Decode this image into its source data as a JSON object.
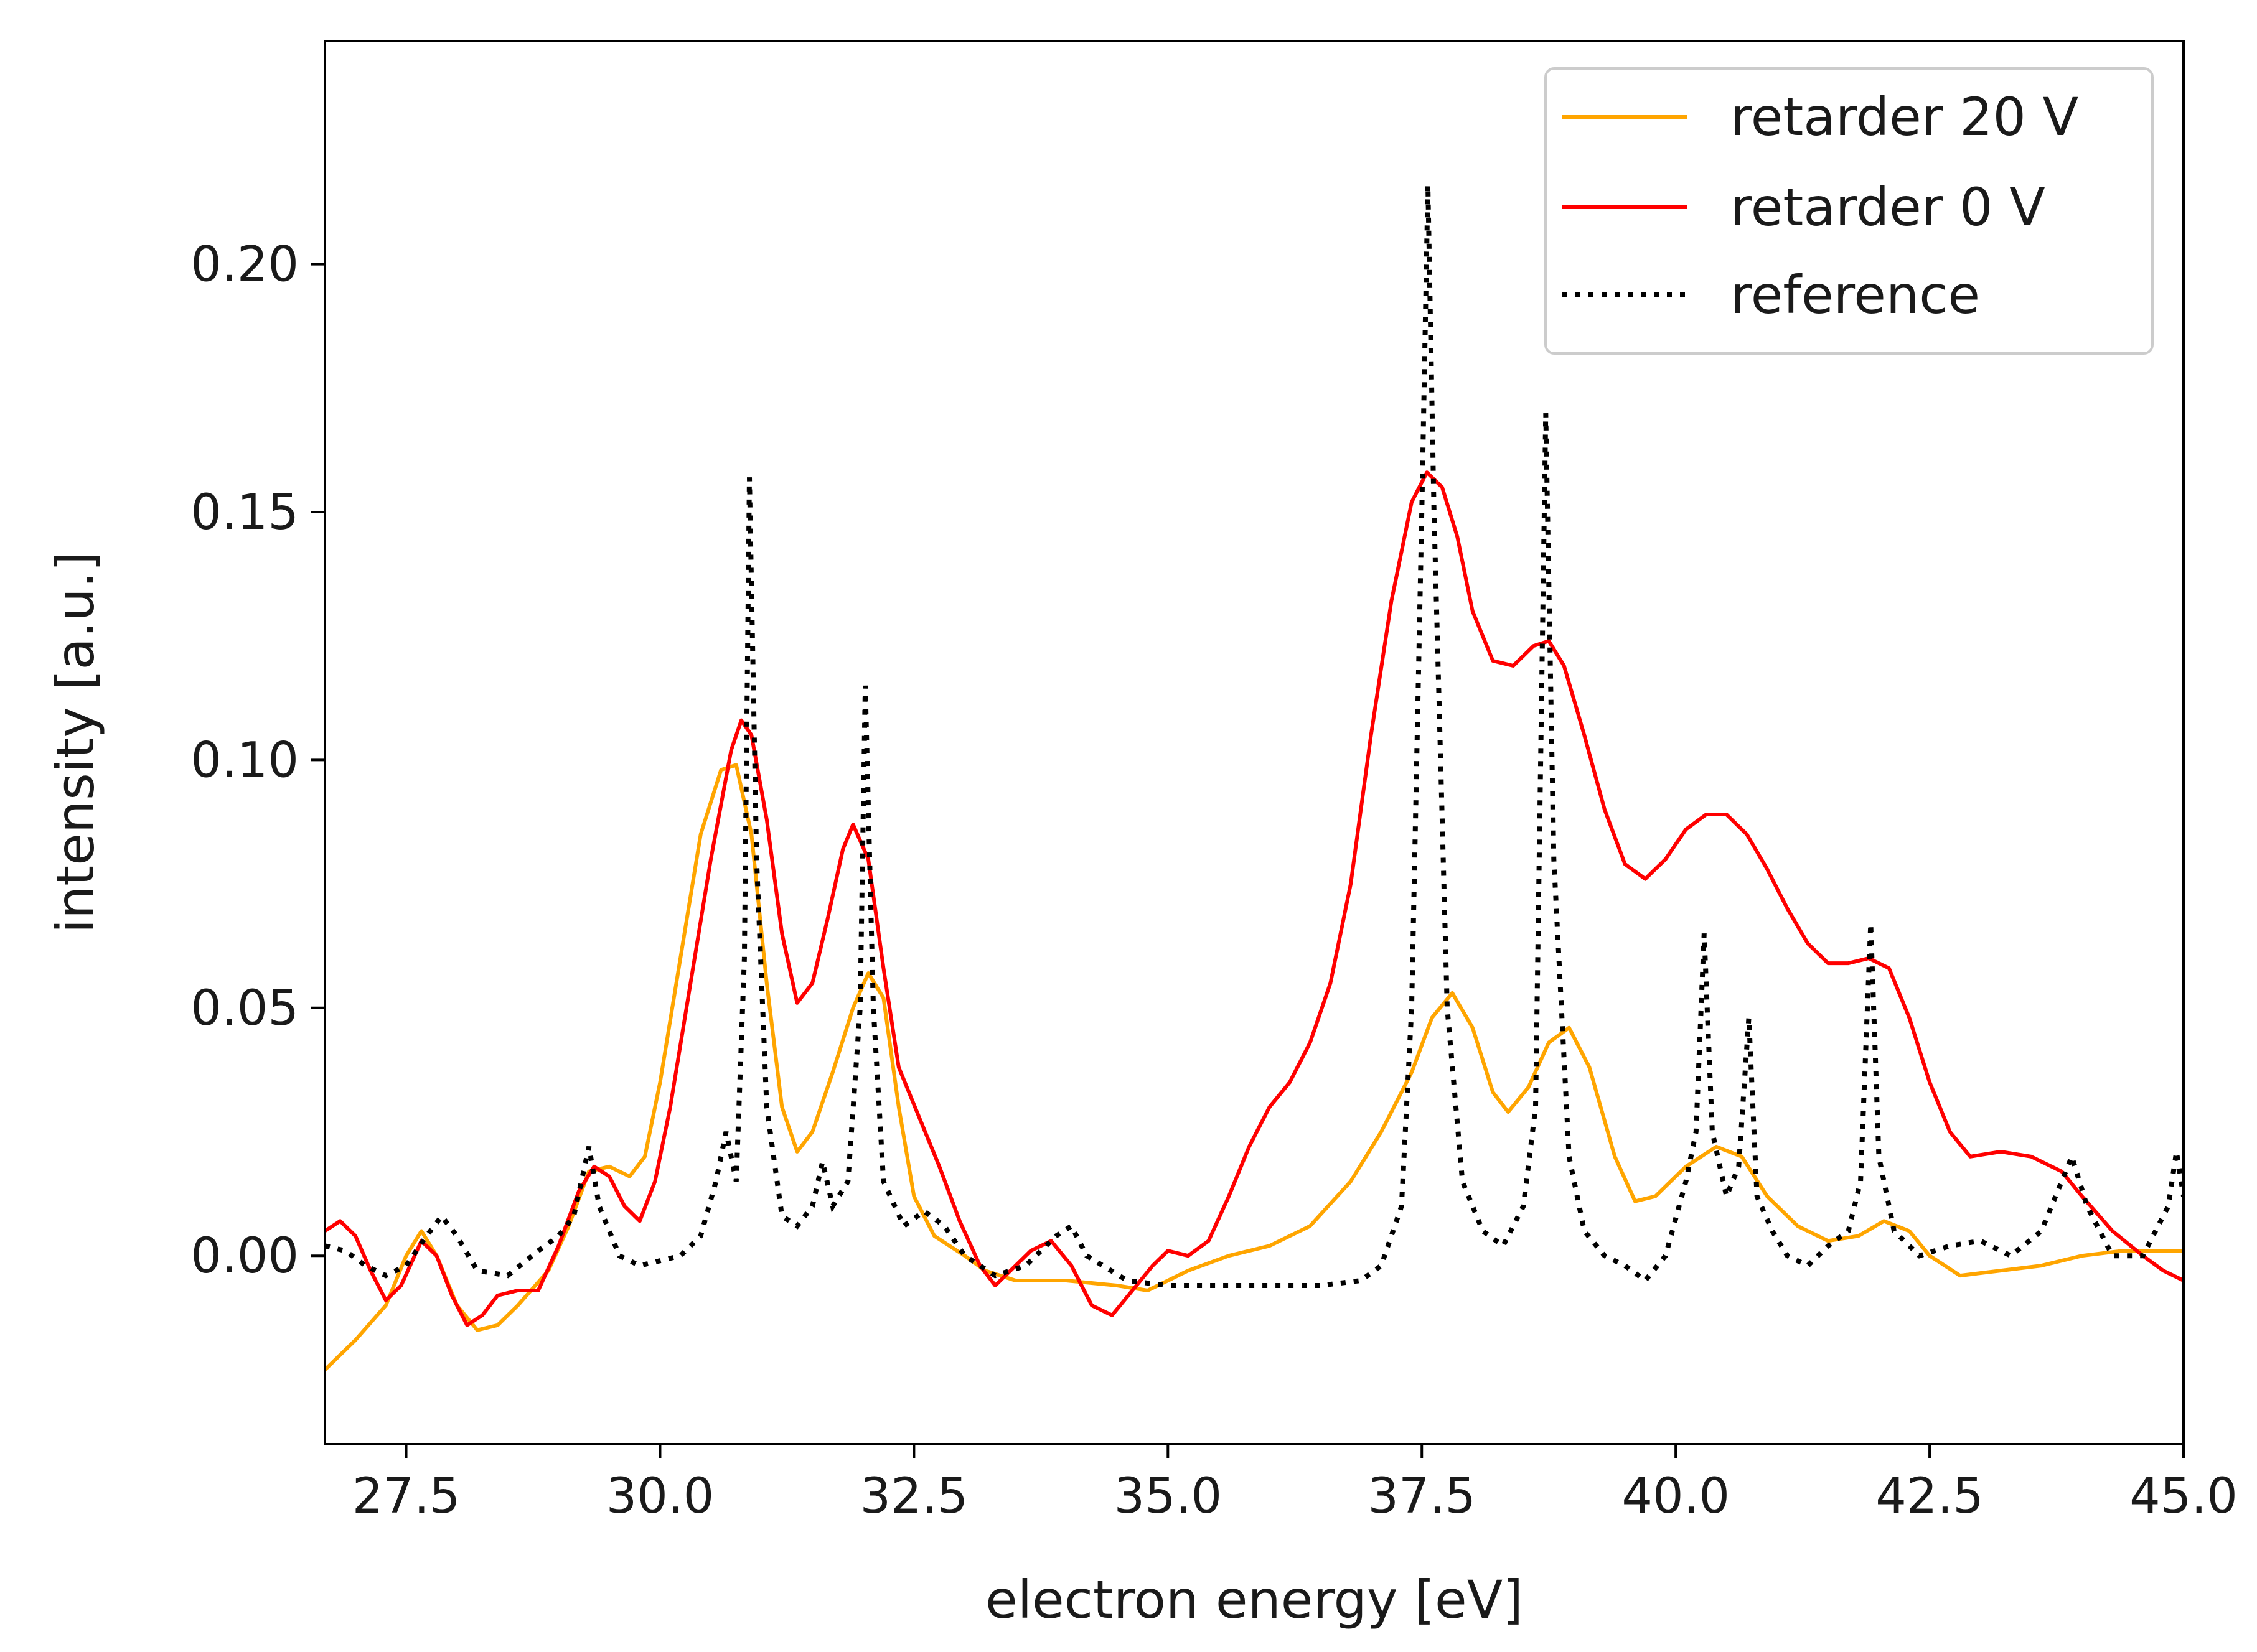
{
  "chart_data": {
    "type": "line",
    "title": "",
    "xlabel": "electron energy [eV]",
    "ylabel": "intensity [a.u.]",
    "xlim": [
      26.7,
      45.0
    ],
    "ylim": [
      -0.038,
      0.245
    ],
    "xticks": [
      27.5,
      30.0,
      32.5,
      35.0,
      37.5,
      40.0,
      42.5,
      45.0
    ],
    "xtick_labels": [
      "27.5",
      "30.0",
      "32.5",
      "35.0",
      "37.5",
      "40.0",
      "42.5",
      "45.0"
    ],
    "yticks": [
      0.0,
      0.05,
      0.1,
      0.15,
      0.2
    ],
    "ytick_labels": [
      "0.00",
      "0.05",
      "0.10",
      "0.15",
      "0.20"
    ],
    "grid": false,
    "legend_position": "top-right",
    "series": [
      {
        "name": "retarder 20 V",
        "color": "#ffa500",
        "style": "solid",
        "points": [
          [
            26.7,
            -0.023
          ],
          [
            27.0,
            -0.017
          ],
          [
            27.3,
            -0.01
          ],
          [
            27.5,
            0.0
          ],
          [
            27.65,
            0.005
          ],
          [
            27.8,
            0.0
          ],
          [
            28.0,
            -0.01
          ],
          [
            28.2,
            -0.015
          ],
          [
            28.4,
            -0.014
          ],
          [
            28.6,
            -0.01
          ],
          [
            28.9,
            -0.003
          ],
          [
            29.1,
            0.006
          ],
          [
            29.3,
            0.017
          ],
          [
            29.5,
            0.018
          ],
          [
            29.7,
            0.016
          ],
          [
            29.85,
            0.02
          ],
          [
            30.0,
            0.035
          ],
          [
            30.2,
            0.06
          ],
          [
            30.4,
            0.085
          ],
          [
            30.6,
            0.098
          ],
          [
            30.75,
            0.099
          ],
          [
            30.9,
            0.085
          ],
          [
            31.05,
            0.055
          ],
          [
            31.2,
            0.03
          ],
          [
            31.35,
            0.021
          ],
          [
            31.5,
            0.025
          ],
          [
            31.7,
            0.037
          ],
          [
            31.9,
            0.05
          ],
          [
            32.05,
            0.057
          ],
          [
            32.2,
            0.052
          ],
          [
            32.35,
            0.03
          ],
          [
            32.5,
            0.012
          ],
          [
            32.7,
            0.004
          ],
          [
            33.0,
            0.0
          ],
          [
            33.2,
            -0.003
          ],
          [
            33.5,
            -0.005
          ],
          [
            34.0,
            -0.005
          ],
          [
            34.5,
            -0.006
          ],
          [
            34.8,
            -0.007
          ],
          [
            35.2,
            -0.003
          ],
          [
            35.6,
            0.0
          ],
          [
            36.0,
            0.002
          ],
          [
            36.4,
            0.006
          ],
          [
            36.8,
            0.015
          ],
          [
            37.1,
            0.025
          ],
          [
            37.4,
            0.037
          ],
          [
            37.6,
            0.048
          ],
          [
            37.8,
            0.053
          ],
          [
            38.0,
            0.046
          ],
          [
            38.2,
            0.033
          ],
          [
            38.35,
            0.029
          ],
          [
            38.55,
            0.034
          ],
          [
            38.75,
            0.043
          ],
          [
            38.95,
            0.046
          ],
          [
            39.15,
            0.038
          ],
          [
            39.4,
            0.02
          ],
          [
            39.6,
            0.011
          ],
          [
            39.8,
            0.012
          ],
          [
            40.1,
            0.018
          ],
          [
            40.4,
            0.022
          ],
          [
            40.65,
            0.02
          ],
          [
            40.9,
            0.012
          ],
          [
            41.2,
            0.006
          ],
          [
            41.5,
            0.003
          ],
          [
            41.8,
            0.004
          ],
          [
            42.05,
            0.007
          ],
          [
            42.3,
            0.005
          ],
          [
            42.5,
            0.0
          ],
          [
            42.8,
            -0.004
          ],
          [
            43.2,
            -0.003
          ],
          [
            43.6,
            -0.002
          ],
          [
            44.0,
            0.0
          ],
          [
            44.4,
            0.001
          ],
          [
            44.8,
            0.001
          ],
          [
            45.0,
            0.001
          ]
        ]
      },
      {
        "name": "retarder 0 V",
        "color": "#ff0000",
        "style": "solid",
        "points": [
          [
            26.7,
            0.005
          ],
          [
            26.85,
            0.007
          ],
          [
            27.0,
            0.004
          ],
          [
            27.15,
            -0.003
          ],
          [
            27.3,
            -0.009
          ],
          [
            27.45,
            -0.006
          ],
          [
            27.65,
            0.003
          ],
          [
            27.8,
            0.0
          ],
          [
            27.95,
            -0.008
          ],
          [
            28.1,
            -0.014
          ],
          [
            28.25,
            -0.012
          ],
          [
            28.4,
            -0.008
          ],
          [
            28.6,
            -0.007
          ],
          [
            28.8,
            -0.007
          ],
          [
            29.0,
            0.002
          ],
          [
            29.2,
            0.013
          ],
          [
            29.35,
            0.018
          ],
          [
            29.5,
            0.016
          ],
          [
            29.65,
            0.01
          ],
          [
            29.8,
            0.007
          ],
          [
            29.95,
            0.015
          ],
          [
            30.1,
            0.03
          ],
          [
            30.3,
            0.055
          ],
          [
            30.5,
            0.08
          ],
          [
            30.7,
            0.102
          ],
          [
            30.8,
            0.108
          ],
          [
            30.9,
            0.105
          ],
          [
            31.05,
            0.088
          ],
          [
            31.2,
            0.065
          ],
          [
            31.35,
            0.051
          ],
          [
            31.5,
            0.055
          ],
          [
            31.65,
            0.068
          ],
          [
            31.8,
            0.082
          ],
          [
            31.9,
            0.087
          ],
          [
            32.05,
            0.08
          ],
          [
            32.2,
            0.058
          ],
          [
            32.35,
            0.038
          ],
          [
            32.55,
            0.028
          ],
          [
            32.75,
            0.018
          ],
          [
            32.95,
            0.007
          ],
          [
            33.15,
            -0.002
          ],
          [
            33.3,
            -0.006
          ],
          [
            33.45,
            -0.003
          ],
          [
            33.65,
            0.001
          ],
          [
            33.85,
            0.003
          ],
          [
            34.05,
            -0.002
          ],
          [
            34.25,
            -0.01
          ],
          [
            34.45,
            -0.012
          ],
          [
            34.65,
            -0.007
          ],
          [
            34.85,
            -0.002
          ],
          [
            35.0,
            0.001
          ],
          [
            35.2,
            0.0
          ],
          [
            35.4,
            0.003
          ],
          [
            35.6,
            0.012
          ],
          [
            35.8,
            0.022
          ],
          [
            36.0,
            0.03
          ],
          [
            36.2,
            0.035
          ],
          [
            36.4,
            0.043
          ],
          [
            36.6,
            0.055
          ],
          [
            36.8,
            0.075
          ],
          [
            37.0,
            0.105
          ],
          [
            37.2,
            0.132
          ],
          [
            37.4,
            0.152
          ],
          [
            37.55,
            0.158
          ],
          [
            37.7,
            0.155
          ],
          [
            37.85,
            0.145
          ],
          [
            38.0,
            0.13
          ],
          [
            38.2,
            0.12
          ],
          [
            38.4,
            0.119
          ],
          [
            38.6,
            0.123
          ],
          [
            38.75,
            0.124
          ],
          [
            38.9,
            0.119
          ],
          [
            39.1,
            0.105
          ],
          [
            39.3,
            0.09
          ],
          [
            39.5,
            0.079
          ],
          [
            39.7,
            0.076
          ],
          [
            39.9,
            0.08
          ],
          [
            40.1,
            0.086
          ],
          [
            40.3,
            0.089
          ],
          [
            40.5,
            0.089
          ],
          [
            40.7,
            0.085
          ],
          [
            40.9,
            0.078
          ],
          [
            41.1,
            0.07
          ],
          [
            41.3,
            0.063
          ],
          [
            41.5,
            0.059
          ],
          [
            41.7,
            0.059
          ],
          [
            41.9,
            0.06
          ],
          [
            42.1,
            0.058
          ],
          [
            42.3,
            0.048
          ],
          [
            42.5,
            0.035
          ],
          [
            42.7,
            0.025
          ],
          [
            42.9,
            0.02
          ],
          [
            43.2,
            0.021
          ],
          [
            43.5,
            0.02
          ],
          [
            43.8,
            0.017
          ],
          [
            44.0,
            0.012
          ],
          [
            44.3,
            0.005
          ],
          [
            44.6,
            0.0
          ],
          [
            44.8,
            -0.003
          ],
          [
            45.0,
            -0.005
          ]
        ]
      },
      {
        "name": "reference",
        "color": "#000000",
        "style": "dotted",
        "points": [
          [
            26.7,
            0.002
          ],
          [
            26.9,
            0.001
          ],
          [
            27.1,
            -0.002
          ],
          [
            27.3,
            -0.004
          ],
          [
            27.5,
            -0.002
          ],
          [
            27.7,
            0.004
          ],
          [
            27.85,
            0.008
          ],
          [
            28.0,
            0.004
          ],
          [
            28.2,
            -0.003
          ],
          [
            28.5,
            -0.004
          ],
          [
            28.8,
            0.001
          ],
          [
            29.0,
            0.004
          ],
          [
            29.15,
            0.008
          ],
          [
            29.3,
            0.022
          ],
          [
            29.4,
            0.01
          ],
          [
            29.6,
            0.0
          ],
          [
            29.8,
            -0.002
          ],
          [
            30.0,
            -0.001
          ],
          [
            30.2,
            0.0
          ],
          [
            30.4,
            0.004
          ],
          [
            30.55,
            0.015
          ],
          [
            30.65,
            0.025
          ],
          [
            30.75,
            0.015
          ],
          [
            30.83,
            0.06
          ],
          [
            30.88,
            0.157
          ],
          [
            30.95,
            0.08
          ],
          [
            31.05,
            0.03
          ],
          [
            31.2,
            0.008
          ],
          [
            31.35,
            0.006
          ],
          [
            31.5,
            0.01
          ],
          [
            31.6,
            0.019
          ],
          [
            31.7,
            0.01
          ],
          [
            31.85,
            0.015
          ],
          [
            31.97,
            0.05
          ],
          [
            32.02,
            0.115
          ],
          [
            32.1,
            0.05
          ],
          [
            32.2,
            0.015
          ],
          [
            32.4,
            0.006
          ],
          [
            32.6,
            0.009
          ],
          [
            32.8,
            0.006
          ],
          [
            33.0,
            0.0
          ],
          [
            33.3,
            -0.004
          ],
          [
            33.6,
            -0.002
          ],
          [
            33.9,
            0.004
          ],
          [
            34.05,
            0.006
          ],
          [
            34.2,
            0.0
          ],
          [
            34.6,
            -0.005
          ],
          [
            35.0,
            -0.006
          ],
          [
            35.5,
            -0.006
          ],
          [
            36.0,
            -0.006
          ],
          [
            36.5,
            -0.006
          ],
          [
            36.9,
            -0.005
          ],
          [
            37.1,
            -0.002
          ],
          [
            37.3,
            0.01
          ],
          [
            37.4,
            0.05
          ],
          [
            37.5,
            0.15
          ],
          [
            37.56,
            0.216
          ],
          [
            37.62,
            0.15
          ],
          [
            37.75,
            0.05
          ],
          [
            37.9,
            0.015
          ],
          [
            38.1,
            0.005
          ],
          [
            38.3,
            0.002
          ],
          [
            38.5,
            0.01
          ],
          [
            38.62,
            0.03
          ],
          [
            38.72,
            0.17
          ],
          [
            38.8,
            0.08
          ],
          [
            38.95,
            0.02
          ],
          [
            39.1,
            0.005
          ],
          [
            39.3,
            0.0
          ],
          [
            39.5,
            -0.002
          ],
          [
            39.7,
            -0.005
          ],
          [
            39.9,
            0.0
          ],
          [
            40.1,
            0.015
          ],
          [
            40.2,
            0.025
          ],
          [
            40.28,
            0.065
          ],
          [
            40.36,
            0.025
          ],
          [
            40.5,
            0.012
          ],
          [
            40.62,
            0.018
          ],
          [
            40.72,
            0.048
          ],
          [
            40.8,
            0.012
          ],
          [
            40.95,
            0.005
          ],
          [
            41.1,
            0.0
          ],
          [
            41.3,
            -0.002
          ],
          [
            41.5,
            0.002
          ],
          [
            41.7,
            0.005
          ],
          [
            41.82,
            0.015
          ],
          [
            41.92,
            0.067
          ],
          [
            42.0,
            0.02
          ],
          [
            42.15,
            0.005
          ],
          [
            42.4,
            0.0
          ],
          [
            42.7,
            0.002
          ],
          [
            43.0,
            0.003
          ],
          [
            43.3,
            0.0
          ],
          [
            43.6,
            0.005
          ],
          [
            43.8,
            0.015
          ],
          [
            43.9,
            0.02
          ],
          [
            44.05,
            0.01
          ],
          [
            44.3,
            0.0
          ],
          [
            44.6,
            0.0
          ],
          [
            44.85,
            0.01
          ],
          [
            44.93,
            0.021
          ],
          [
            45.0,
            0.012
          ]
        ]
      }
    ]
  }
}
